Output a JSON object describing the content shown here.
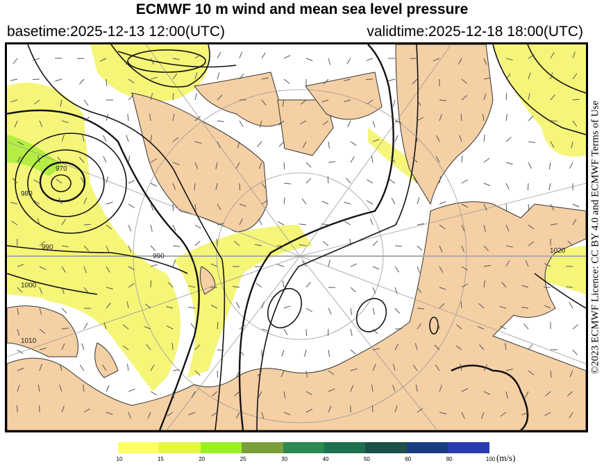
{
  "header": {
    "title": "ECMWF 10 m wind and mean sea level pressure",
    "basetime": "basetime:2025-12-13 12:00(UTC)",
    "validtime": "validtime:2025-12-18 18:00(UTC)"
  },
  "map": {
    "land_color": "#f5d0a5",
    "contour_labels": [
      "970",
      "980",
      "990",
      "1000",
      "1010",
      "1020"
    ]
  },
  "credit": "©2023 ECMWF Licence: CC BY 4.0 and ECMWF Terms of Use",
  "colorbar": {
    "unit": "(m/s)",
    "ticks": [
      "10",
      "15",
      "20",
      "25",
      "30",
      "40",
      "50",
      "60",
      "80",
      "100"
    ],
    "colors": [
      "#ffff66",
      "#e6f542",
      "#99f022",
      "#7a9e3a",
      "#2a8a50",
      "#1e6e50",
      "#1a5048",
      "#1a3a80",
      "#2a3ab0"
    ]
  }
}
